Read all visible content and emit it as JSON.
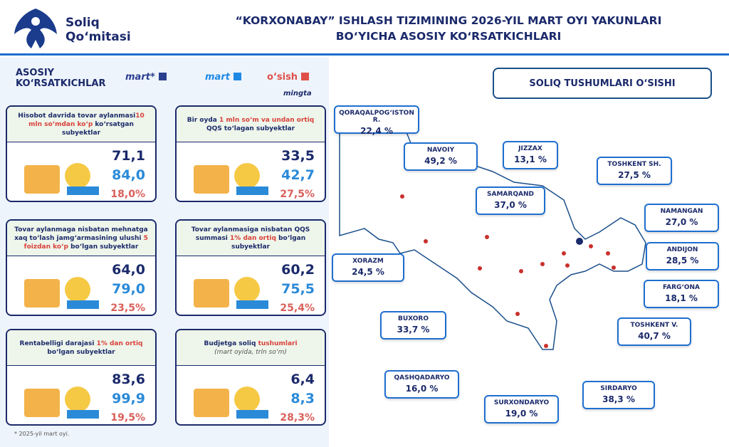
{
  "header": {
    "logo": "Soliq Qo‘mitasi",
    "title_line1": "“KORXONABAY” ISHLASH TIZIMINING 2026-YIL MART OYI YAKUNLARI",
    "title_line2": "BO‘YICHA ASOSIY KO‘RSATKICHLARI"
  },
  "left": {
    "title_line1": "ASOSIY",
    "title_line2": "KO‘RSATKICHLAR",
    "legend": [
      {
        "label": "mart*",
        "color": "#2b3f8f"
      },
      {
        "label": "mart",
        "color": "#1e88e5"
      },
      {
        "label": "o‘sish",
        "color": "#e0504a"
      }
    ],
    "unit": "mingta",
    "cards": [
      {
        "t1": "Hisobot davrida tovar aylanmasi",
        "t2": "10 mln so‘mdan ko‘p",
        "t3": " ko‘rsatgan subyektlar",
        "v1": "71,1",
        "v2": "84,0",
        "v3": "18,0%"
      },
      {
        "t1": "Bir oyda ",
        "t2": "1 mln so‘m va undan ortiq",
        "t3": " QQS to‘lagan subyektlar",
        "v1": "33,5",
        "v2": "42,7",
        "v3": "27,5%"
      },
      {
        "t1": "Tovar aylanmaga nisbatan mehnatga xaq to‘lash jamg‘armasining ulushi ",
        "t2": "5 foizdan ko‘p",
        "t3": " bo‘lgan subyektlar",
        "v1": "64,0",
        "v2": "79,0",
        "v3": "23,5%"
      },
      {
        "t1": "Tovar aylanmasiga nisbatan QQS summasi ",
        "t2": "1% dan ortiq",
        "t3": " bo‘lgan subyektlar",
        "v1": "60,2",
        "v2": "75,5",
        "v3": "25,4%"
      },
      {
        "t1": "Rentabelligi darajasi ",
        "t2": "1% dan ortiq",
        "t3": " bo‘lgan subyektlar",
        "v1": "83,6",
        "v2": "99,9",
        "v3": "19,5%"
      },
      {
        "t1": "Budjetga soliq ",
        "t2": "tushumlari",
        "t3": "",
        "sub": "(mart oyida, trln so‘m)",
        "v1": "6,4",
        "v2": "8,3",
        "v3": "28,3%"
      }
    ],
    "footnote": "* 2025-yil mart oyi."
  },
  "map": {
    "title": "SOLIQ TUSHUMLARI O‘SISHI",
    "regions": [
      {
        "name": "QORAQALPOG‘ISTON R.",
        "value": "22,4 %"
      },
      {
        "name": "NAVOIY",
        "value": "49,2 %"
      },
      {
        "name": "JIZZAX",
        "value": "13,1 %"
      },
      {
        "name": "TOSHKENT SH.",
        "value": "27,5 %"
      },
      {
        "name": "SAMARQAND",
        "value": "37,0 %"
      },
      {
        "name": "NAMANGAN",
        "value": "27,0 %"
      },
      {
        "name": "ANDIJON",
        "value": "28,5 %"
      },
      {
        "name": "XORAZM",
        "value": "24,5 %"
      },
      {
        "name": "FARG‘ONA",
        "value": "18,1 %"
      },
      {
        "name": "BUXORO",
        "value": "33,7 %"
      },
      {
        "name": "TOSHKENT V.",
        "value": "40,7 %"
      },
      {
        "name": "QASHQADARYO",
        "value": "16,0 %"
      },
      {
        "name": "SURXONDARYO",
        "value": "19,0 %"
      },
      {
        "name": "SIRDARYO",
        "value": "38,3 %"
      }
    ]
  }
}
